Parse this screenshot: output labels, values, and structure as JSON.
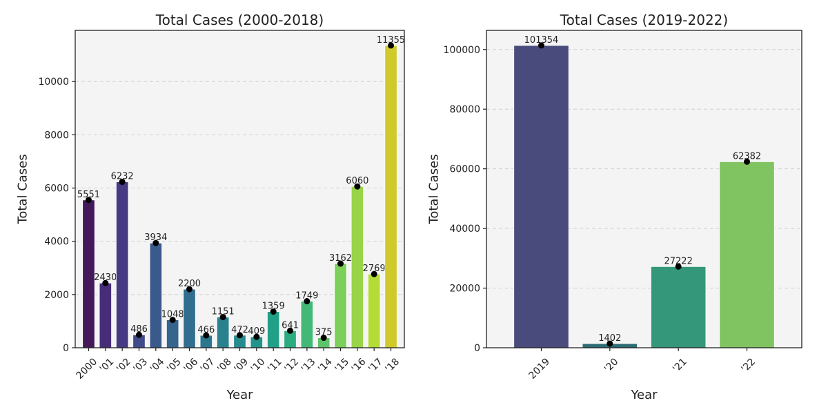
{
  "chart_data": [
    {
      "type": "bar",
      "title": "Total Cases (2000-2018)",
      "xlabel": "Year",
      "ylabel": "Total Cases",
      "categories": [
        "2000",
        "'01",
        "'02",
        "'03",
        "'04",
        "'05",
        "'06",
        "'07",
        "'08",
        "'09",
        "'10",
        "'11",
        "'12",
        "'13",
        "'14",
        "'15",
        "'16",
        "'17",
        "'18"
      ],
      "values": [
        5551,
        2430,
        6232,
        486,
        3934,
        1048,
        2200,
        466,
        1151,
        472,
        409,
        1359,
        641,
        1749,
        375,
        3162,
        6060,
        2769,
        11355
      ],
      "ylim": [
        0,
        11923
      ],
      "yticks": [
        0,
        2000,
        4000,
        6000,
        8000,
        10000
      ],
      "grid": true,
      "colors": [
        "#44195a",
        "#472c7a",
        "#463a83",
        "#3f4b8a",
        "#3b5a8c",
        "#35648d",
        "#306d8e",
        "#2c778e",
        "#29818e",
        "#268b8d",
        "#23948b",
        "#21a087",
        "#2aac80",
        "#43b877",
        "#5ec46b",
        "#7ccf5a",
        "#98d448",
        "#b5db36",
        "#cfca2a"
      ],
      "marker_color": "#000000"
    },
    {
      "type": "bar",
      "title": "Total Cases (2019-2022)",
      "xlabel": "Year",
      "ylabel": "Total Cases",
      "categories": [
        "2019",
        "'20",
        "'21",
        "'22"
      ],
      "values": [
        101354,
        1402,
        27222,
        62382
      ],
      "ylim": [
        0,
        106422
      ],
      "yticks": [
        0,
        20000,
        40000,
        60000,
        80000,
        100000
      ],
      "grid": true,
      "colors": [
        "#494b7c",
        "#2d6c73",
        "#34977a",
        "#80c361"
      ],
      "marker_color": "#000000"
    }
  ]
}
